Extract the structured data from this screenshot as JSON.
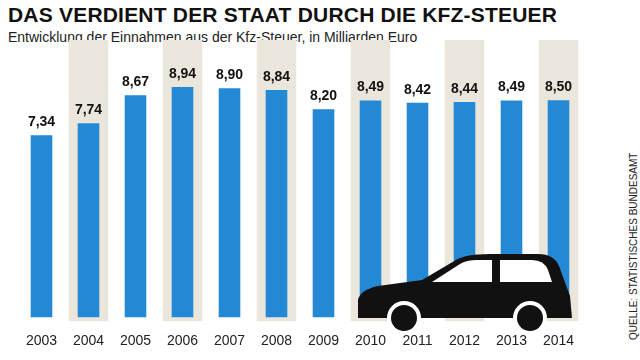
{
  "chart_data": {
    "type": "bar",
    "title": "DAS VERDIENT DER STAAT DURCH DIE KFZ-STEUER",
    "subtitle": "Entwicklung der Einnahmen aus der Kfz-Steuer, in Milliarden Euro",
    "annotations": [
      "QUELLE: STATISTISCHES BUNDESAMT"
    ],
    "categories": [
      "2003",
      "2004",
      "2005",
      "2006",
      "2007",
      "2008",
      "2009",
      "2010",
      "2011",
      "2012",
      "2013",
      "2014"
    ],
    "values": [
      7.34,
      7.74,
      8.67,
      8.94,
      8.9,
      8.84,
      8.2,
      8.49,
      8.42,
      8.44,
      8.49,
      8.5
    ],
    "value_labels": [
      "7,34",
      "7,74",
      "8,67",
      "8,94",
      "8,90",
      "8,84",
      "8,20",
      "8,49",
      "8,42",
      "8,44",
      "8,49",
      "8,50"
    ],
    "color": "#2389d4",
    "ylim": [
      1.3,
      10.5
    ],
    "grid": false,
    "data_labels": true,
    "tick_labels": "x"
  }
}
